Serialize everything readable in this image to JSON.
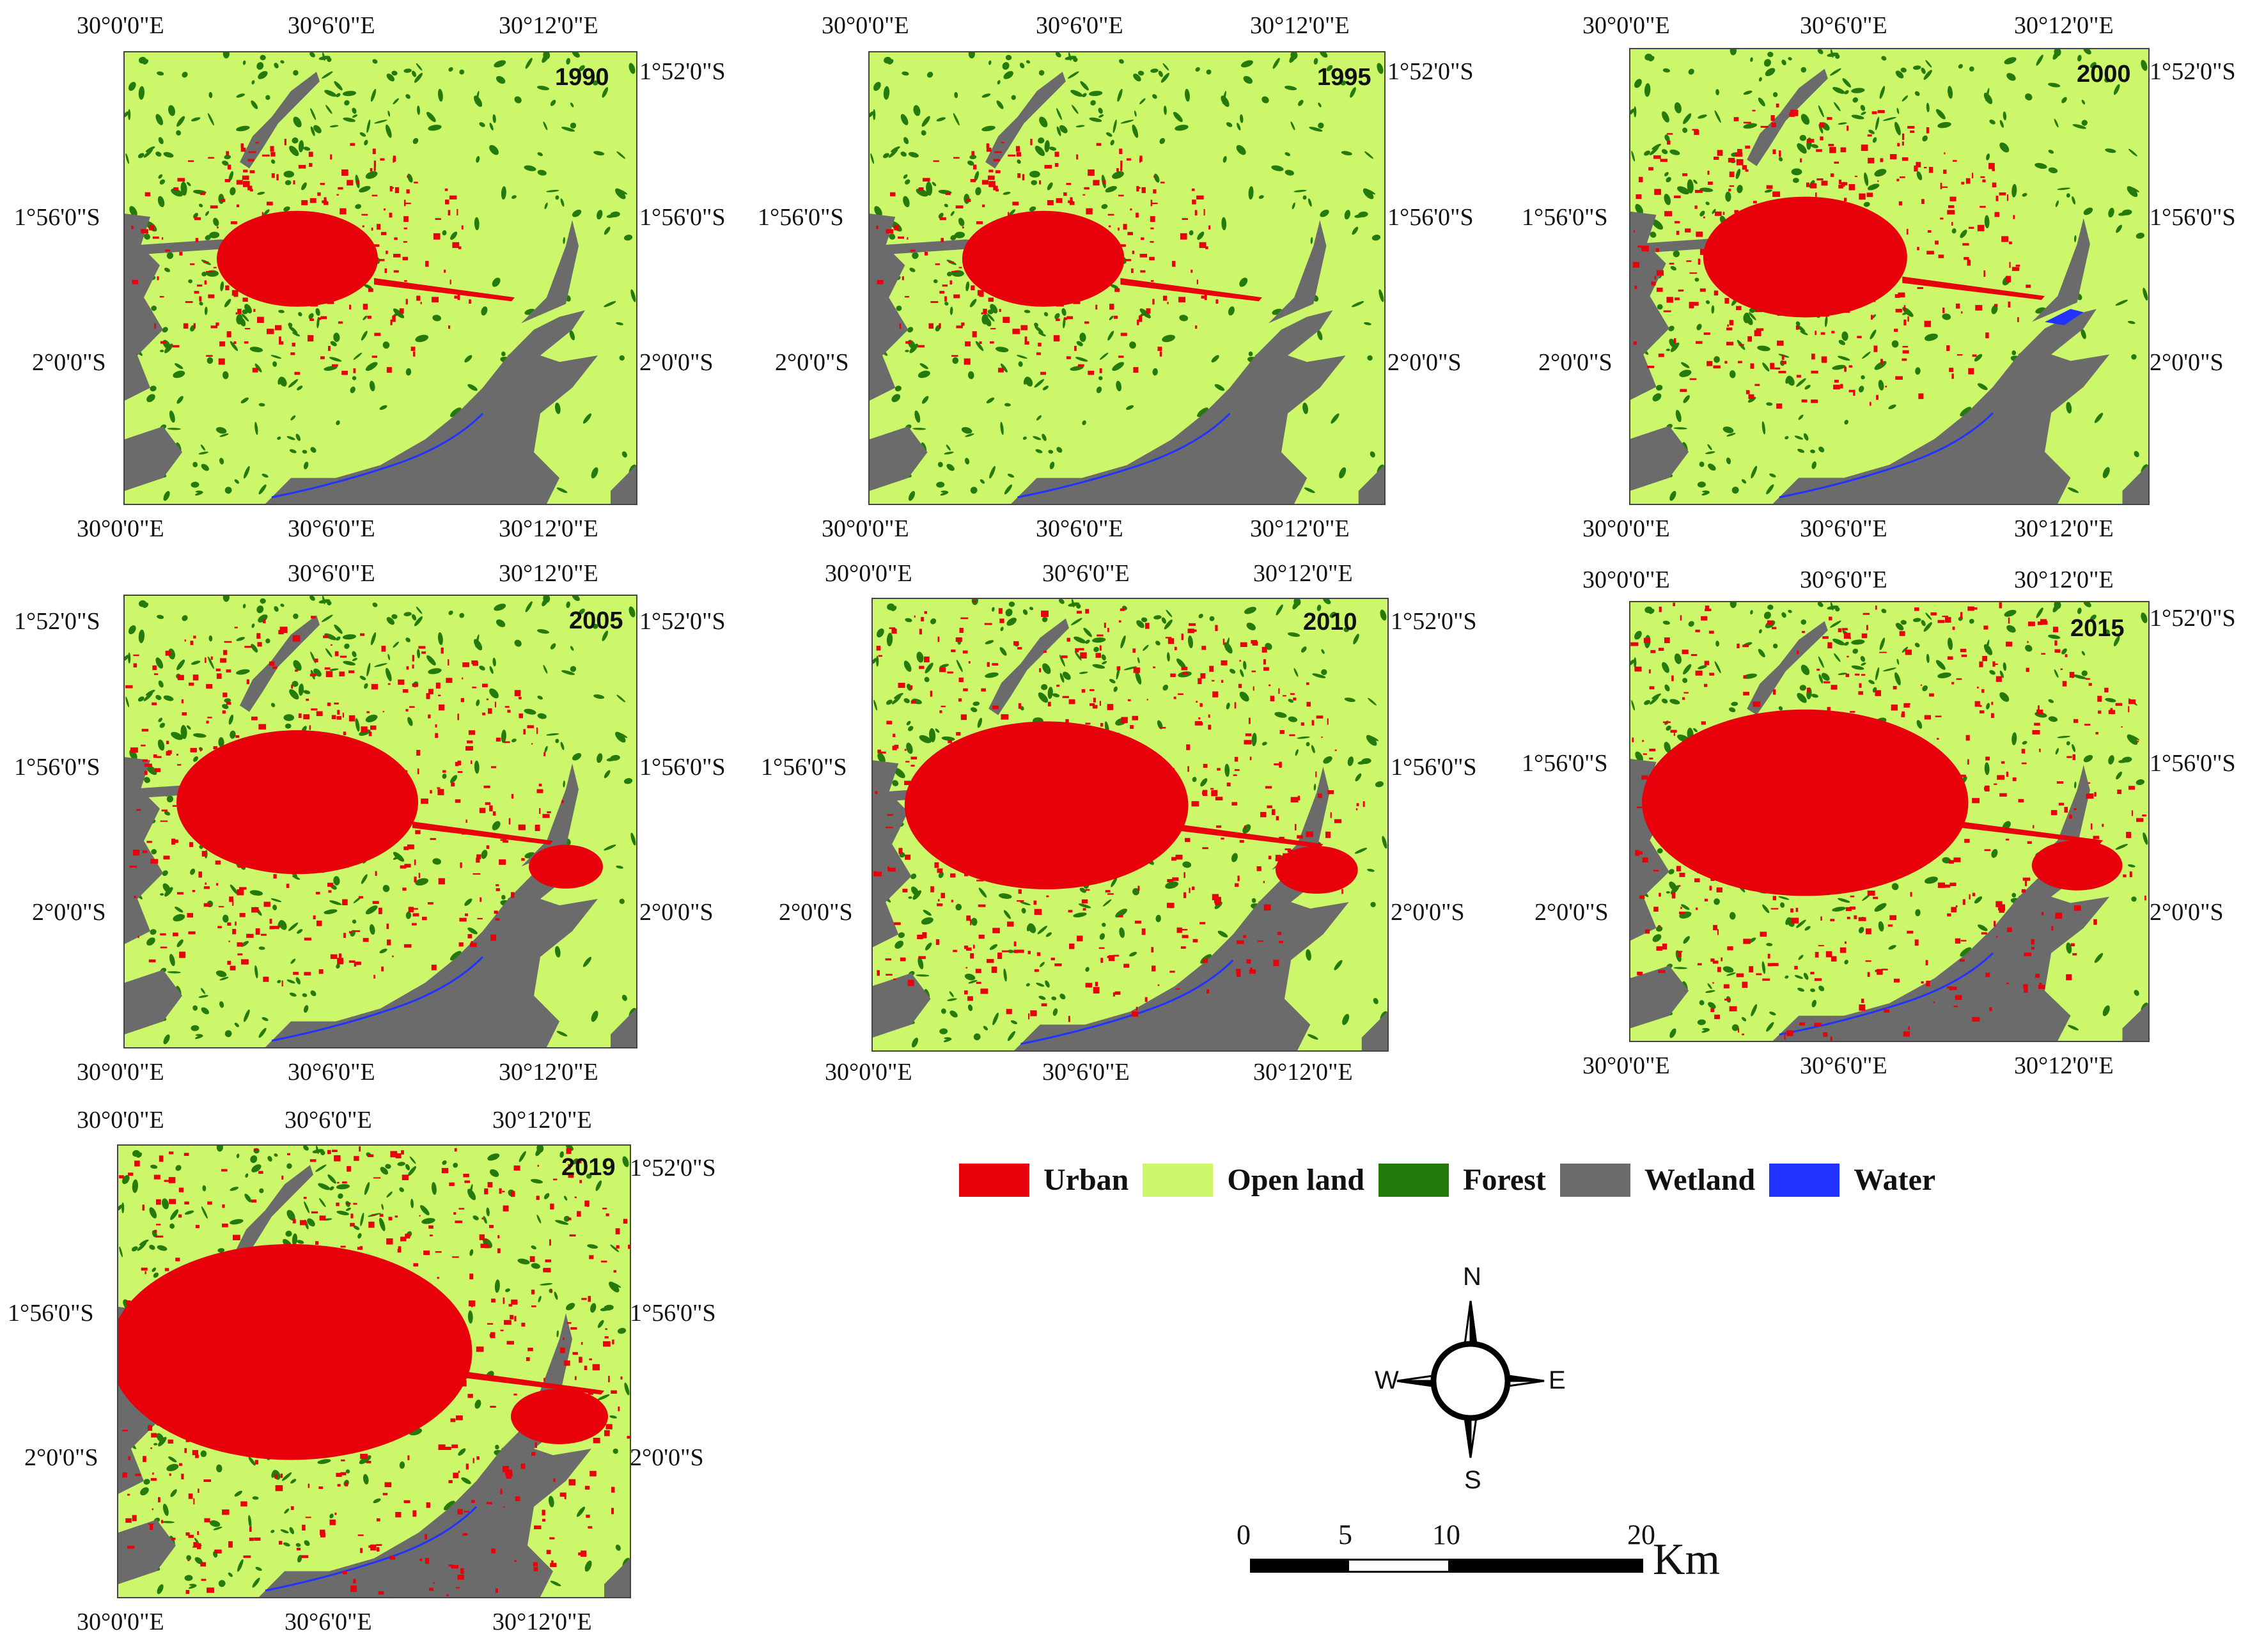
{
  "panels": [
    {
      "year": "1990",
      "urban_level": 1
    },
    {
      "year": "1995",
      "urban_level": 1
    },
    {
      "year": "2000",
      "urban_level": 2
    },
    {
      "year": "2005",
      "urban_level": 3
    },
    {
      "year": "2010",
      "urban_level": 4
    },
    {
      "year": "2015",
      "urban_level": 5
    },
    {
      "year": "2019",
      "urban_level": 6
    }
  ],
  "coords": {
    "lon_0": "30°0'0\"E",
    "lon_6": "30°6'0\"E",
    "lon_12": "30°12'0\"E",
    "lat_52": "1°52'0\"S",
    "lat_56": "1°56'0\"S",
    "lat_60": "2°0'0\"S"
  },
  "legend": [
    {
      "label": "Urban",
      "color": "#e8000a"
    },
    {
      "label": "Open land",
      "color": "#ccf76a"
    },
    {
      "label": "Forest",
      "color": "#247a0a"
    },
    {
      "label": "Wetland",
      "color": "#6b6b6b"
    },
    {
      "label": "Water",
      "color": "#2233ff"
    }
  ],
  "compass": {
    "n": "N",
    "s": "S",
    "e": "E",
    "w": "W"
  },
  "scale": {
    "ticks": [
      "0",
      "5",
      "10",
      "20"
    ],
    "unit": "Km"
  }
}
